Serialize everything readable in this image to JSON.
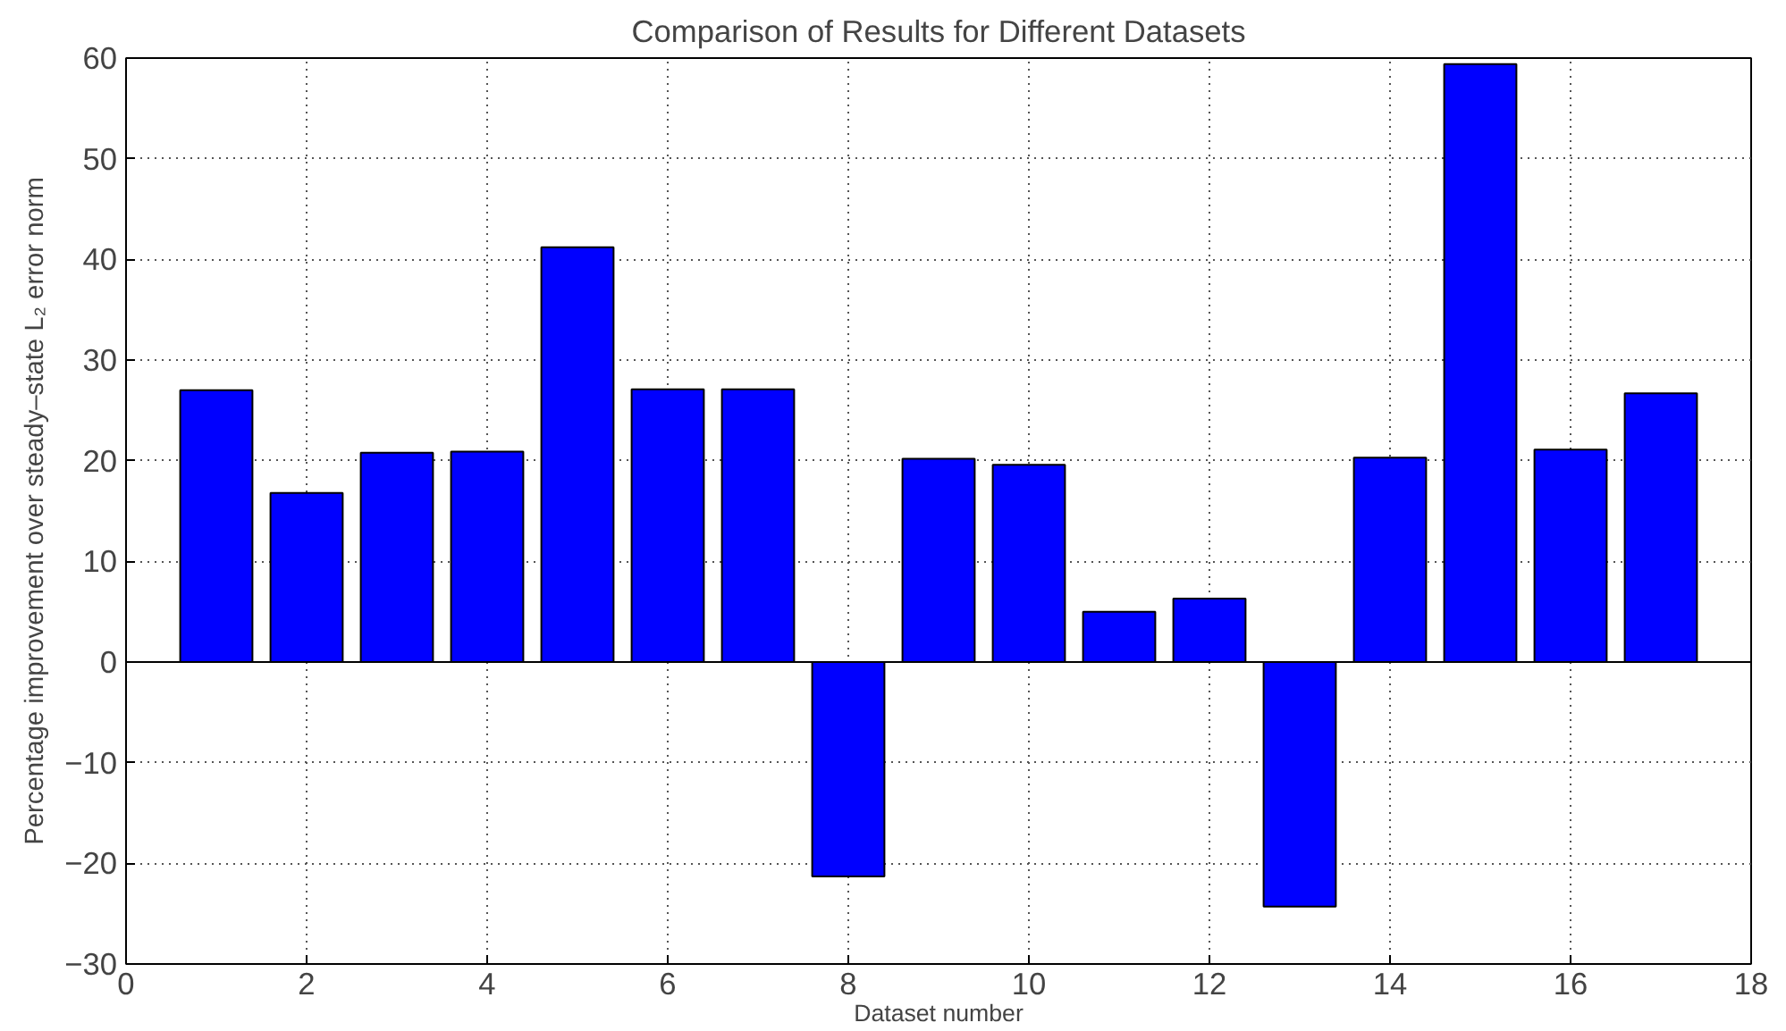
{
  "chart_data": {
    "type": "bar",
    "title": "Comparison of Results for Different Datasets",
    "xlabel": "Dataset number",
    "ylabel": "Percentage improvement over steady–state L₂ error norm",
    "x": [
      1,
      2,
      3,
      4,
      5,
      6,
      7,
      8,
      9,
      10,
      11,
      12,
      13,
      14,
      15,
      16,
      17
    ],
    "values": [
      27,
      16.8,
      20.8,
      20.9,
      41.2,
      27.1,
      27.1,
      -21.3,
      20.2,
      19.6,
      5.0,
      6.3,
      -24.3,
      20.3,
      59.4,
      21.1,
      26.7
    ],
    "color": "#0000ff",
    "xlim": [
      0,
      18
    ],
    "xticks": [
      0,
      2,
      4,
      6,
      8,
      10,
      12,
      14,
      16,
      18
    ],
    "ylim": [
      -30,
      60
    ],
    "yticks": [
      -30,
      -20,
      -10,
      0,
      10,
      20,
      30,
      40,
      50,
      60
    ],
    "grid": true
  }
}
